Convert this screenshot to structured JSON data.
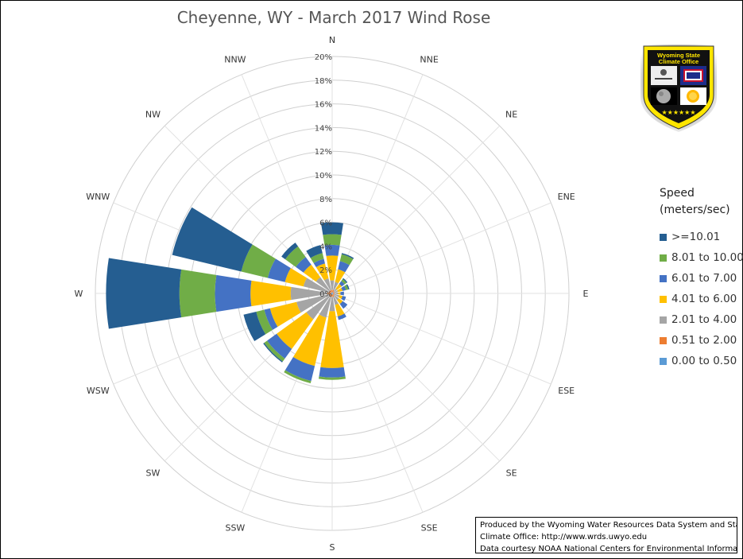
{
  "title": "Cheyenne, WY - March 2017 Wind Rose",
  "legend": {
    "title_line1": "Speed",
    "title_line2": "(meters/sec)",
    "items": [
      {
        "label": ">=10.01",
        "color": "#255E91"
      },
      {
        "label": "8.01 to 10.00",
        "color": "#70AD47"
      },
      {
        "label": "6.01 to 7.00",
        "color": "#4472C4"
      },
      {
        "label": "4.01 to 6.00",
        "color": "#FFC000"
      },
      {
        "label": "2.01 to 4.00",
        "color": "#A5A5A5"
      },
      {
        "label": "0.51 to 2.00",
        "color": "#ED7D31"
      },
      {
        "label": "0.00 to 0.50",
        "color": "#5B9BD5"
      }
    ]
  },
  "credit": {
    "line1": "Produced by the Wyoming Water Resources Data System and State",
    "line2": "Climate Office: http://www.wrds.uwyo.edu",
    "line3": "Data courtesy NOAA National Centers for Environmental Information"
  },
  "badge": {
    "line1": "Wyoming State",
    "line2": "Climate Office"
  },
  "chart_data": {
    "type": "radar-stacked-bar",
    "title": "Cheyenne, WY - March 2017 Wind Rose",
    "directions": [
      "N",
      "NNE",
      "NE",
      "ENE",
      "E",
      "ESE",
      "SE",
      "SSE",
      "S",
      "SSW",
      "SW",
      "WSW",
      "W",
      "WNW",
      "NW",
      "NNW"
    ],
    "radial_ticks": [
      "0%",
      "2%",
      "4%",
      "6%",
      "8%",
      "10%",
      "12%",
      "14%",
      "16%",
      "18%",
      "20%"
    ],
    "radial_max": 20,
    "series": [
      {
        "name": "0.00 to 0.50",
        "color": "#5B9BD5",
        "values": [
          0.1,
          0.1,
          0.1,
          0.1,
          0.1,
          0.1,
          0.1,
          0.1,
          0.1,
          0.1,
          0.1,
          0.1,
          0.1,
          0.1,
          0.1,
          0.1
        ]
      },
      {
        "name": "0.51 to 2.00",
        "color": "#ED7D31",
        "values": [
          0.2,
          0.2,
          0.1,
          0.1,
          0.1,
          0.1,
          0.1,
          0.2,
          0.2,
          0.2,
          0.2,
          0.2,
          0.3,
          0.2,
          0.2,
          0.2
        ]
      },
      {
        "name": "2.01 to 4.00",
        "color": "#A5A5A5",
        "values": [
          0.8,
          0.7,
          0.3,
          0.3,
          0.3,
          0.4,
          0.5,
          0.7,
          1.2,
          1.8,
          2.4,
          2.8,
          3.1,
          2.2,
          1.4,
          1.0
        ]
      },
      {
        "name": "4.01 to 6.00",
        "color": "#FFC000",
        "values": [
          2.1,
          1.1,
          0.5,
          0.4,
          0.2,
          0.3,
          0.4,
          1.0,
          4.8,
          4.2,
          3.1,
          2.3,
          3.4,
          1.6,
          1.3,
          1.3
        ]
      },
      {
        "name": "6.01 to 7.00",
        "color": "#4472C4",
        "values": [
          0.9,
          0.7,
          0.3,
          0.3,
          0.3,
          0.3,
          0.5,
          0.3,
          0.8,
          1.3,
          1.0,
          0.5,
          3.0,
          1.5,
          0.8,
          0.4
        ]
      },
      {
        "name": "8.01 to 10.00",
        "color": "#70AD47",
        "values": [
          0.9,
          0.6,
          0.2,
          0.2,
          0.0,
          0.0,
          0.0,
          0.0,
          0.2,
          0.2,
          0.3,
          0.7,
          3.0,
          2.3,
          1.1,
          0.5
        ]
      },
      {
        "name": ">=10.01",
        "color": "#255E91",
        "values": [
          1.0,
          0.1,
          0.1,
          0.1,
          0.0,
          0.0,
          0.0,
          0.0,
          0.0,
          0.0,
          0.1,
          1.1,
          6.2,
          6.0,
          0.4,
          0.7
        ]
      }
    ]
  }
}
